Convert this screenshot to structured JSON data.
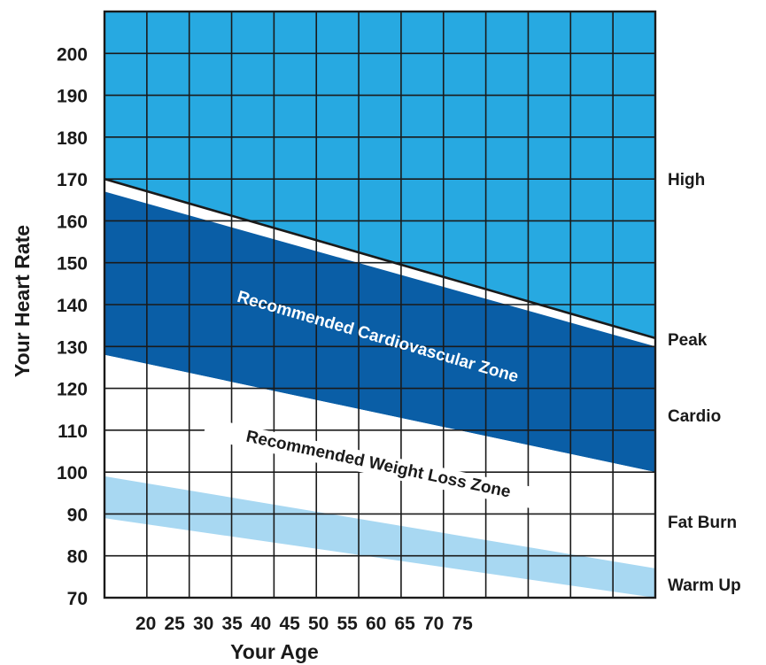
{
  "chart_data": {
    "type": "area",
    "xlabel": "Your Age",
    "ylabel": "Your Heart Rate",
    "xticks": [
      "20",
      "25",
      "30",
      "35",
      "40",
      "45",
      "50",
      "55",
      "60",
      "65",
      "70",
      "75"
    ],
    "yticks": [
      "70",
      "80",
      "90",
      "100",
      "110",
      "120",
      "130",
      "140",
      "150",
      "160",
      "170",
      "180",
      "190",
      "200"
    ],
    "xlim": [
      20,
      85
    ],
    "ylim": [
      70,
      210
    ],
    "grid": true,
    "series": [
      {
        "name": "High",
        "color": "#27a9e1",
        "x": [
          20,
          85
        ],
        "upper": [
          210,
          210
        ],
        "lower": [
          170,
          132
        ]
      },
      {
        "name": "Peak",
        "color": "#ffffff",
        "x": [
          20,
          85
        ],
        "upper": [
          170,
          132
        ],
        "lower": [
          167,
          130
        ]
      },
      {
        "name": "Cardio",
        "color": "#0a5ea6",
        "x": [
          20,
          85
        ],
        "upper": [
          167,
          130
        ],
        "lower": [
          128,
          100
        ]
      },
      {
        "name": "Fat Burn",
        "color": "#ffffff",
        "x": [
          20,
          85
        ],
        "upper": [
          128,
          100
        ],
        "lower": [
          99,
          77
        ]
      },
      {
        "name": "Warm Up",
        "color": "#a8d8f2",
        "x": [
          20,
          85
        ],
        "upper": [
          99,
          77
        ],
        "lower": [
          89,
          70
        ]
      }
    ],
    "zone_labels": [
      "High",
      "Peak",
      "Cardio",
      "Fat Burn",
      "Warm Up"
    ],
    "annotations": [
      "Recommended Cardiovascular Zone",
      "Recommended Weight Loss Zone"
    ]
  }
}
